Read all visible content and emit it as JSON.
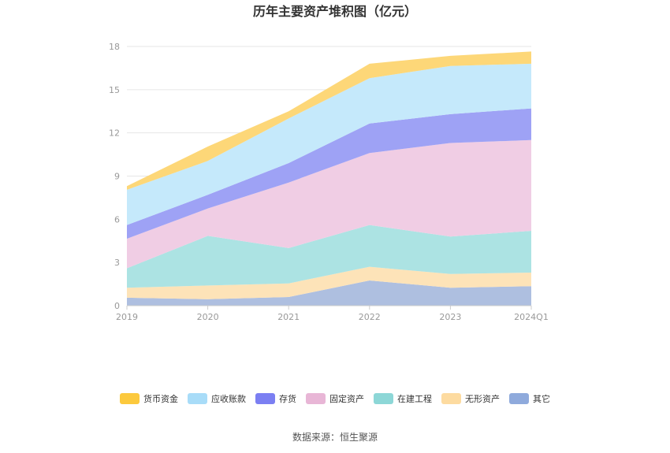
{
  "chart_data": {
    "type": "area",
    "stacked": true,
    "title": "历年主要资产堆积图（亿元）",
    "x": [
      "2019",
      "2020",
      "2021",
      "2022",
      "2023",
      "2024Q1"
    ],
    "yticks": [
      "0",
      "3",
      "6",
      "9",
      "12",
      "15",
      "18"
    ],
    "ylim": [
      0,
      18
    ],
    "grid": true,
    "legend_position": "bottom",
    "series": [
      {
        "name": "其它",
        "color": "#aebfe0",
        "legend_color": "#8faadc",
        "values": [
          0.55,
          0.45,
          0.6,
          1.75,
          1.25,
          1.35
        ]
      },
      {
        "name": "无形资产",
        "color": "#fde3b8",
        "legend_color": "#fddba0",
        "values": [
          0.7,
          0.95,
          0.95,
          0.95,
          0.95,
          0.95
        ]
      },
      {
        "name": "在建工程",
        "color": "#ace3e3",
        "legend_color": "#8dd7d7",
        "values": [
          1.35,
          3.45,
          2.45,
          2.9,
          2.6,
          2.9
        ]
      },
      {
        "name": "固定资产",
        "color": "#f0cde4",
        "legend_color": "#e8b6d6",
        "values": [
          2.05,
          1.9,
          4.55,
          5.0,
          6.5,
          6.3
        ]
      },
      {
        "name": "存货",
        "color": "#9ea2f5",
        "legend_color": "#7b7ff2",
        "values": [
          0.95,
          0.95,
          1.35,
          2.05,
          2.0,
          2.2
        ]
      },
      {
        "name": "应收账款",
        "color": "#c5e9fb",
        "legend_color": "#a8dcf8",
        "values": [
          2.45,
          2.35,
          3.1,
          3.15,
          3.35,
          3.1
        ]
      },
      {
        "name": "货币资金",
        "color": "#fdd778",
        "legend_color": "#fcc93d",
        "values": [
          0.25,
          1.0,
          0.5,
          1.0,
          0.7,
          0.85
        ]
      }
    ],
    "legend_order": [
      "货币资金",
      "应收账款",
      "存货",
      "固定资产",
      "在建工程",
      "无形资产",
      "其它"
    ]
  },
  "source_text": "数据来源：恒生聚源"
}
